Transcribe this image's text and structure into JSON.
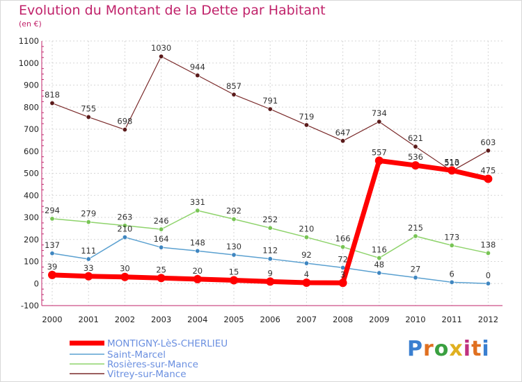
{
  "chart_data": {
    "type": "line",
    "title": "Evolution du Montant de la Dette par Habitant",
    "subtitle": "(en €)",
    "x": [
      "2000",
      "2001",
      "2002",
      "2003",
      "2004",
      "2005",
      "2006",
      "2007",
      "2008",
      "2009",
      "2010",
      "2011",
      "2012"
    ],
    "ylim": [
      -100,
      1100
    ],
    "yticks": [
      -100,
      0,
      100,
      200,
      300,
      400,
      500,
      600,
      700,
      800,
      900,
      1000,
      1100
    ],
    "grid": true,
    "legend": "bottom-left",
    "series": [
      {
        "name": "MONTIGNY-LèS-CHERLIEU",
        "color": "#ff0000",
        "values": [
          39,
          33,
          30,
          25,
          20,
          15,
          9,
          4,
          3,
          557,
          536,
          513,
          475
        ],
        "labels": [
          "39",
          "33",
          "30",
          "25",
          "20",
          "15",
          "9",
          "4",
          "3",
          "557",
          "536",
          "513",
          "475"
        ]
      },
      {
        "name": "Saint-Marcel",
        "color": "#5aa0d0",
        "values": [
          137,
          111,
          210,
          164,
          148,
          130,
          112,
          92,
          72,
          48,
          27,
          6,
          0
        ],
        "labels": [
          "137",
          "111",
          "210",
          "164",
          "148",
          "130",
          "112",
          "92",
          "72",
          "48",
          "27",
          "6",
          "0"
        ]
      },
      {
        "name": "Rosières-sur-Mance",
        "color": "#8ed36b",
        "values": [
          294,
          279,
          263,
          246,
          331,
          292,
          252,
          210,
          166,
          116,
          215,
          173,
          138
        ],
        "labels": [
          "294",
          "279",
          "263",
          "246",
          "331",
          "292",
          "252",
          "210",
          "166",
          "116",
          "215",
          "173",
          "138"
        ]
      },
      {
        "name": "Vitrey-sur-Mance",
        "color": "#7a2a2a",
        "values": [
          818,
          755,
          698,
          1030,
          944,
          857,
          791,
          719,
          647,
          734,
          621,
          510,
          603
        ],
        "labels": [
          "818",
          "755",
          "698",
          "1030",
          "944",
          "857",
          "791",
          "719",
          "647",
          "734",
          "621",
          "510",
          "603"
        ]
      }
    ]
  },
  "logo": {
    "text": "Proxiti"
  }
}
